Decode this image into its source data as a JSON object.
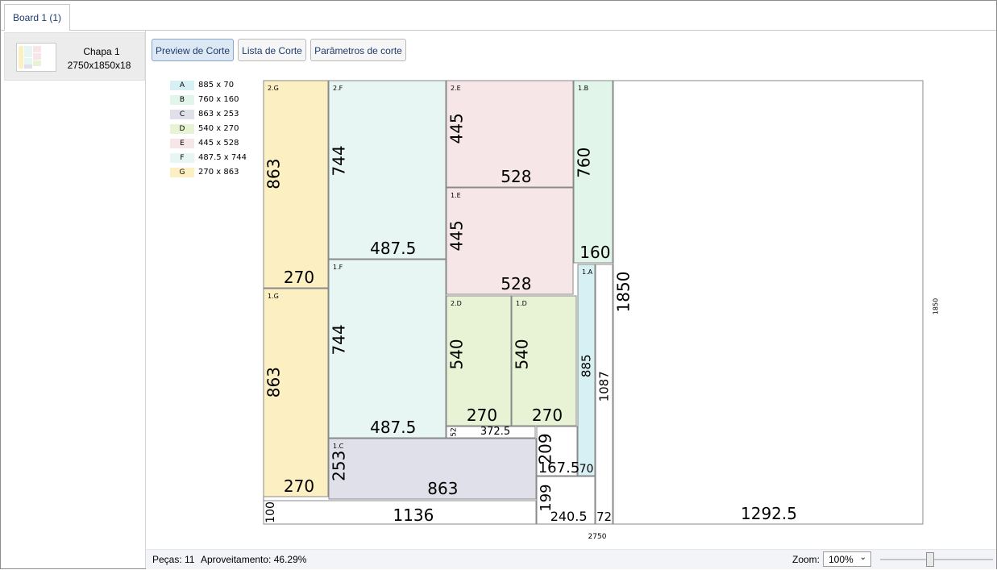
{
  "tabs": [
    {
      "label": "Board 1 (1)"
    }
  ],
  "sidebar": {
    "items": [
      {
        "name": "Chapa 1",
        "dims": "2750x1850x18"
      }
    ]
  },
  "toolbar": {
    "buttons": [
      "Preview de Corte",
      "Lista de Corte",
      "Parâmetros de corte"
    ],
    "active": 0
  },
  "legend": [
    {
      "code": "A",
      "size": "885 x 70",
      "color": "#d6f0f3"
    },
    {
      "code": "B",
      "size": "760 x 160",
      "color": "#e1f5ea"
    },
    {
      "code": "C",
      "size": "863 x 253",
      "color": "#dfe0ea"
    },
    {
      "code": "D",
      "size": "540 x 270",
      "color": "#e8f3d5"
    },
    {
      "code": "E",
      "size": "445 x 528",
      "color": "#f6e6e8"
    },
    {
      "code": "F",
      "size": "487.5 x 744",
      "color": "#e7f6f3"
    },
    {
      "code": "G",
      "size": "270 x 863",
      "color": "#fcefc2"
    }
  ],
  "board": {
    "width_label": "2750",
    "height_label": "1850",
    "pieces": [
      {
        "id": "2.G",
        "w": "270",
        "h": "863",
        "type": "G"
      },
      {
        "id": "1.G",
        "w": "270",
        "h": "863",
        "type": "G"
      },
      {
        "id": "2.F",
        "w": "487.5",
        "h": "744",
        "type": "F"
      },
      {
        "id": "1.F",
        "w": "487.5",
        "h": "744",
        "type": "F"
      },
      {
        "id": "2.E",
        "w": "528",
        "h": "445",
        "type": "E"
      },
      {
        "id": "1.E",
        "w": "528",
        "h": "445",
        "type": "E"
      },
      {
        "id": "1.B",
        "w": "160",
        "h": "760",
        "type": "B"
      },
      {
        "id": "2.D",
        "w": "270",
        "h": "540",
        "type": "D"
      },
      {
        "id": "1.D",
        "w": "270",
        "h": "540",
        "type": "D"
      },
      {
        "id": "1.A",
        "w": "70",
        "h": "885",
        "type": "A"
      },
      {
        "id": "1.C",
        "w": "863",
        "h": "253",
        "type": "C"
      }
    ],
    "offcuts": [
      {
        "w": "1136",
        "h": "100"
      },
      {
        "w": "372.5",
        "h": "52"
      },
      {
        "w": "167.5",
        "h": "209"
      },
      {
        "w": "240.5",
        "h": "199"
      },
      {
        "w": "72",
        "h": "1087"
      },
      {
        "w": "1292.5",
        "h": "1850"
      }
    ]
  },
  "status": {
    "pieces_label": "Peças: 11",
    "usage_label": "Aproveitamento: 46.29%"
  },
  "zoom": {
    "label": "Zoom:",
    "value": "100%",
    "slider_level": 0.45
  }
}
